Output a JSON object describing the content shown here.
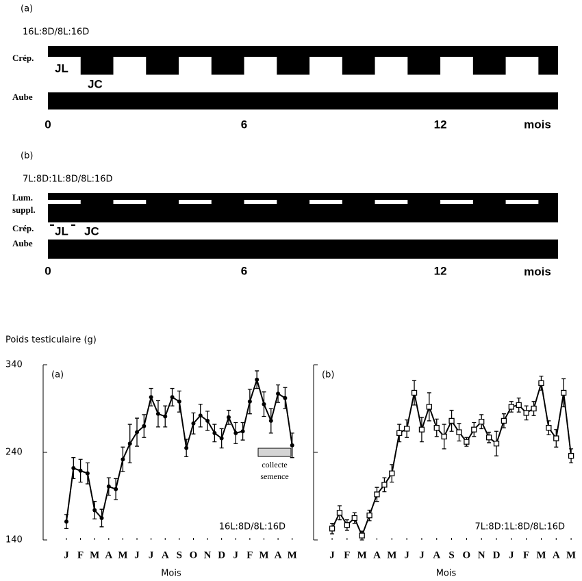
{
  "schedules": [
    {
      "label": "(a)",
      "regime": "16L:8D/8L:16D",
      "rows": [
        "Crép.",
        "Aube"
      ],
      "phases": [
        "JL",
        "JC"
      ],
      "xlim": [
        0,
        15.6
      ],
      "xticks": [
        0,
        6,
        12
      ],
      "xlabel": "mois",
      "jc_blocks": [
        [
          1,
          2
        ],
        [
          3,
          4
        ],
        [
          5,
          6
        ],
        [
          7,
          8
        ],
        [
          9,
          10
        ],
        [
          11,
          12
        ],
        [
          13,
          14
        ],
        [
          15,
          15.6
        ]
      ]
    },
    {
      "label": "(b)",
      "regime": "7L:8D:1L:8D/8L:16D",
      "rows": [
        [
          "Lum.",
          "suppl."
        ],
        "Crép.",
        "Aube"
      ],
      "phases": [
        "JL",
        "JC"
      ],
      "xlim": [
        0,
        15.6
      ],
      "xticks": [
        0,
        6,
        12
      ],
      "xlabel": "mois",
      "light_blocks": [
        [
          0,
          1
        ],
        [
          2,
          3
        ],
        [
          4,
          5
        ],
        [
          6,
          7
        ],
        [
          8,
          9
        ],
        [
          10,
          11
        ],
        [
          12,
          13
        ],
        [
          14,
          15
        ]
      ]
    }
  ],
  "ylabel": "Poids testiculaire (g)",
  "chart_data": [
    {
      "type": "line",
      "label": "(a)",
      "annotation": "16L:8D/8L:16D",
      "xlabel": "Mois",
      "legend": {
        "label": [
          "collecte",
          "semence"
        ],
        "color": "#d4d4d4"
      },
      "x": [
        0,
        0.5,
        1,
        1.5,
        2,
        2.5,
        3,
        3.5,
        4,
        4.5,
        5,
        5.5,
        6,
        6.5,
        7,
        7.5,
        8,
        8.5,
        9,
        9.5,
        10,
        10.5,
        11,
        11.5,
        12,
        12.5,
        13,
        13.5,
        14,
        14.5,
        15,
        15.5,
        16
      ],
      "series": [
        {
          "color": "#000000",
          "marker": "circle",
          "values": [
            161,
            222,
            219,
            216,
            174,
            165,
            201,
            198,
            232,
            250,
            263,
            270,
            303,
            284,
            281,
            303,
            298,
            245,
            273,
            282,
            276,
            262,
            256,
            280,
            262,
            264,
            298,
            323,
            295,
            276,
            307,
            302,
            248
          ],
          "errors": [
            8,
            12,
            13,
            12,
            10,
            10,
            10,
            12,
            14,
            22,
            16,
            13,
            10,
            15,
            12,
            10,
            12,
            10,
            12,
            13,
            11,
            10,
            11,
            8,
            12,
            10,
            14,
            10,
            14,
            14,
            10,
            12,
            14
          ]
        }
      ],
      "xlim": [
        -1.65,
        16.5
      ],
      "xticks": [
        {
          "value": 0,
          "label": "J"
        },
        {
          "value": 1,
          "label": "F"
        },
        {
          "value": 2,
          "label": "M"
        },
        {
          "value": 3,
          "label": "A"
        },
        {
          "value": 4,
          "label": "M"
        },
        {
          "value": 5,
          "label": "J"
        },
        {
          "value": 6,
          "label": "J"
        },
        {
          "value": 7,
          "label": "A"
        },
        {
          "value": 8,
          "label": "S"
        },
        {
          "value": 9,
          "label": "O"
        },
        {
          "value": 10,
          "label": "N"
        },
        {
          "value": 11,
          "label": "D"
        },
        {
          "value": 12,
          "label": "J"
        },
        {
          "value": 13,
          "label": "F"
        },
        {
          "value": 14,
          "label": "M"
        },
        {
          "value": 15,
          "label": "A"
        },
        {
          "value": 16,
          "label": "M"
        }
      ],
      "ylim": [
        140,
        340
      ],
      "yticks": [
        140,
        240,
        340
      ],
      "ytick_labels": true
    },
    {
      "type": "line",
      "label": "(b)",
      "annotation": "7L:8D:1L:8D/8L:16D",
      "xlabel": "Mois",
      "x": [
        0,
        0.5,
        1,
        1.5,
        2,
        2.5,
        3,
        3.5,
        4,
        4.5,
        5,
        5.5,
        6,
        6.5,
        7,
        7.5,
        8,
        8.5,
        9,
        9.5,
        10,
        10.5,
        11,
        11.5,
        12,
        12.5,
        13,
        13.5,
        14,
        14.5,
        15,
        15.5,
        16
      ],
      "series": [
        {
          "color": "#000000",
          "marker": "square",
          "values": [
            153,
            171,
            157,
            165,
            145,
            168,
            192,
            203,
            216,
            262,
            267,
            308,
            266,
            292,
            268,
            258,
            276,
            263,
            252,
            266,
            275,
            257,
            250,
            276,
            292,
            294,
            285,
            290,
            319,
            268,
            256,
            308,
            236
          ],
          "errors": [
            6,
            8,
            6,
            6,
            5,
            6,
            8,
            8,
            10,
            10,
            10,
            14,
            14,
            16,
            10,
            14,
            12,
            10,
            5,
            8,
            8,
            6,
            14,
            8,
            6,
            8,
            8,
            8,
            8,
            8,
            10,
            16,
            8
          ]
        }
      ],
      "xlim": [
        -1.24,
        16.5
      ],
      "xticks": [
        {
          "value": 0,
          "label": "J"
        },
        {
          "value": 1,
          "label": "F"
        },
        {
          "value": 2,
          "label": "M"
        },
        {
          "value": 3,
          "label": "A"
        },
        {
          "value": 4,
          "label": "M"
        },
        {
          "value": 5,
          "label": "J"
        },
        {
          "value": 6,
          "label": "J"
        },
        {
          "value": 7,
          "label": "A"
        },
        {
          "value": 8,
          "label": "S"
        },
        {
          "value": 9,
          "label": "O"
        },
        {
          "value": 10,
          "label": "N"
        },
        {
          "value": 11,
          "label": "D"
        },
        {
          "value": 12,
          "label": "J"
        },
        {
          "value": 13,
          "label": "F"
        },
        {
          "value": 14,
          "label": "M"
        },
        {
          "value": 15,
          "label": "A"
        },
        {
          "value": 16,
          "label": "M"
        }
      ],
      "ylim": [
        140,
        340
      ],
      "yticks": [
        140,
        240,
        340
      ],
      "ytick_labels": false
    }
  ]
}
